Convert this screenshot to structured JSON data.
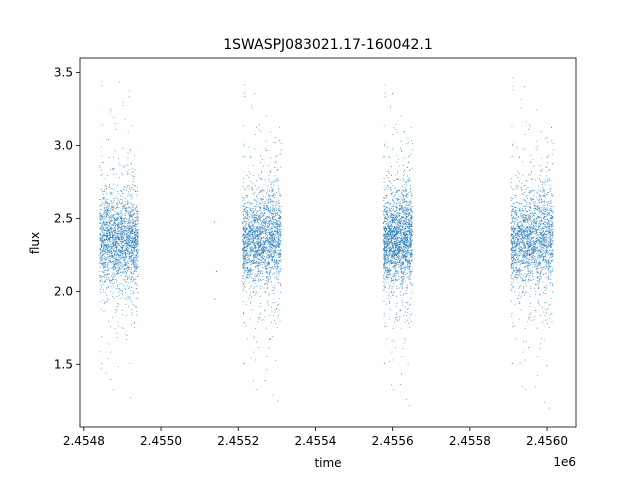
{
  "chart_data": {
    "type": "scatter",
    "title": "1SWASPJ083021.17-160042.1",
    "xlabel": "time",
    "ylabel": "flux",
    "x_offset_label": "1e6",
    "xlim": [
      2454790,
      2456075
    ],
    "ylim": [
      1.07,
      3.6
    ],
    "x_tick_values": [
      2454800,
      2455000,
      2455200,
      2455400,
      2455600,
      2455800,
      2456000
    ],
    "x_tick_labels": [
      "2.4548",
      "2.4550",
      "2.4552",
      "2.4554",
      "2.4556",
      "2.4558",
      "2.4560"
    ],
    "y_tick_values": [
      1.5,
      2.0,
      2.5,
      3.0,
      3.5
    ],
    "y_tick_labels": [
      "1.5",
      "2.0",
      "2.5",
      "3.0",
      "3.5"
    ],
    "grid": false,
    "marker_color": "#1f77b4",
    "clusters": [
      {
        "x_start": 2454840,
        "x_end": 2454940,
        "y_center": 2.35,
        "y_min": 1.21,
        "y_max": 3.5
      },
      {
        "x_start": 2455210,
        "x_end": 2455310,
        "y_center": 2.35,
        "y_min": 1.23,
        "y_max": 3.42
      },
      {
        "x_start": 2455575,
        "x_end": 2455650,
        "y_center": 2.35,
        "y_min": 1.2,
        "y_max": 3.42
      },
      {
        "x_start": 2455905,
        "x_end": 2456015,
        "y_center": 2.35,
        "y_min": 1.18,
        "y_max": 3.47
      }
    ],
    "outliers": [
      {
        "x": 2455137,
        "y": 2.48
      },
      {
        "x": 2455138,
        "y": 1.95
      },
      {
        "x": 2455142,
        "y": 2.14
      }
    ]
  }
}
